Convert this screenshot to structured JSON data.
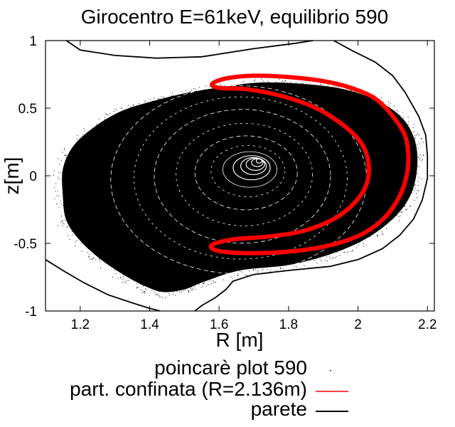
{
  "chart_data": {
    "type": "scatter",
    "title": "Girocentro E=61keV, equilibrio 590",
    "xlabel": "R [m]",
    "ylabel": "z[m]",
    "xlim": [
      1.1,
      2.22
    ],
    "ylim": [
      -1,
      1
    ],
    "xticks": [
      1.2,
      1.4,
      1.6,
      1.8,
      2,
      2.2
    ],
    "xtick_labels": [
      "1.2",
      "1.4",
      "1.6",
      "1.8",
      "2",
      "2.2"
    ],
    "yticks": [
      1,
      0.5,
      0,
      -0.5,
      -1
    ],
    "ytick_labels": [
      "1",
      "0.5",
      "0",
      "-0.5",
      "-1"
    ],
    "grid": false,
    "legend_position": "bottom-right",
    "series": [
      {
        "name": "poincarè plot 590",
        "kind": "points",
        "color": "#000000",
        "magnetic_axis": {
          "R": 1.715,
          "z": 0.11
        },
        "boundary": [
          [
            1.44,
            -0.86
          ],
          [
            1.39,
            -0.82
          ],
          [
            1.33,
            -0.74
          ],
          [
            1.26,
            -0.62
          ],
          [
            1.2,
            -0.48
          ],
          [
            1.16,
            -0.33
          ],
          [
            1.15,
            -0.15
          ],
          [
            1.15,
            0.05
          ],
          [
            1.18,
            0.22
          ],
          [
            1.24,
            0.36
          ],
          [
            1.32,
            0.48
          ],
          [
            1.42,
            0.56
          ],
          [
            1.52,
            0.62
          ],
          [
            1.62,
            0.66
          ],
          [
            1.72,
            0.69
          ],
          [
            1.84,
            0.68
          ],
          [
            1.96,
            0.64
          ],
          [
            2.06,
            0.55
          ],
          [
            2.13,
            0.42
          ],
          [
            2.165,
            0.25
          ],
          [
            2.17,
            0.05
          ],
          [
            2.15,
            -0.15
          ],
          [
            2.1,
            -0.32
          ],
          [
            2.02,
            -0.47
          ],
          [
            1.92,
            -0.58
          ],
          [
            1.8,
            -0.66
          ],
          [
            1.66,
            -0.7
          ],
          [
            1.56,
            -0.78
          ],
          [
            1.5,
            -0.84
          ]
        ]
      },
      {
        "name": "part. confinata (R=2.136m)",
        "kind": "orbit",
        "color": "#ff0000",
        "points": [
          [
            1.58,
            0.68
          ],
          [
            1.62,
            0.72
          ],
          [
            1.7,
            0.74
          ],
          [
            1.8,
            0.73
          ],
          [
            1.9,
            0.7
          ],
          [
            1.98,
            0.65
          ],
          [
            2.05,
            0.57
          ],
          [
            2.1,
            0.44
          ],
          [
            2.135,
            0.3
          ],
          [
            2.145,
            0.15
          ],
          [
            2.14,
            0.0
          ],
          [
            2.12,
            -0.15
          ],
          [
            2.08,
            -0.3
          ],
          [
            2.02,
            -0.42
          ],
          [
            1.94,
            -0.5
          ],
          [
            1.84,
            -0.55
          ],
          [
            1.74,
            -0.57
          ],
          [
            1.65,
            -0.57
          ],
          [
            1.59,
            -0.55
          ],
          [
            1.58,
            -0.51
          ],
          [
            1.64,
            -0.47
          ],
          [
            1.74,
            -0.45
          ],
          [
            1.84,
            -0.41
          ],
          [
            1.93,
            -0.32
          ],
          [
            1.99,
            -0.2
          ],
          [
            2.025,
            -0.06
          ],
          [
            2.03,
            0.1
          ],
          [
            2.01,
            0.24
          ],
          [
            1.96,
            0.37
          ],
          [
            1.88,
            0.5
          ],
          [
            1.78,
            0.59
          ],
          [
            1.68,
            0.64
          ],
          [
            1.6,
            0.65
          ]
        ]
      },
      {
        "name": "parete",
        "kind": "line",
        "color": "#000000",
        "segments": [
          [
            [
              1.1,
              -0.62
            ],
            [
              1.15,
              -0.7
            ],
            [
              1.21,
              -0.79
            ],
            [
              1.28,
              -0.88
            ],
            [
              1.35,
              -0.94
            ],
            [
              1.4,
              -0.98
            ],
            [
              1.43,
              -1.0
            ]
          ],
          [
            [
              1.16,
              1.0
            ],
            [
              1.2,
              0.93
            ],
            [
              1.3,
              0.89
            ],
            [
              1.42,
              0.87
            ],
            [
              1.55,
              0.88
            ],
            [
              1.7,
              0.94
            ],
            [
              1.82,
              0.98
            ],
            [
              1.87,
              1.0
            ]
          ],
          [
            [
              1.93,
              1.0
            ],
            [
              1.98,
              0.93
            ],
            [
              2.05,
              0.84
            ],
            [
              2.1,
              0.74
            ],
            [
              2.135,
              0.62
            ],
            [
              2.175,
              0.44
            ],
            [
              2.195,
              0.3
            ],
            [
              2.2,
              0.15
            ],
            [
              2.2,
              -0.02
            ],
            [
              2.185,
              -0.18
            ],
            [
              2.16,
              -0.32
            ],
            [
              2.12,
              -0.44
            ],
            [
              2.07,
              -0.54
            ],
            [
              2.0,
              -0.62
            ],
            [
              1.92,
              -0.67
            ],
            [
              1.8,
              -0.7
            ],
            [
              1.7,
              -0.73
            ],
            [
              1.64,
              -0.78
            ],
            [
              1.62,
              -0.84
            ],
            [
              1.59,
              -0.9
            ],
            [
              1.55,
              -0.96
            ],
            [
              1.53,
              -1.0
            ]
          ]
        ]
      }
    ]
  }
}
